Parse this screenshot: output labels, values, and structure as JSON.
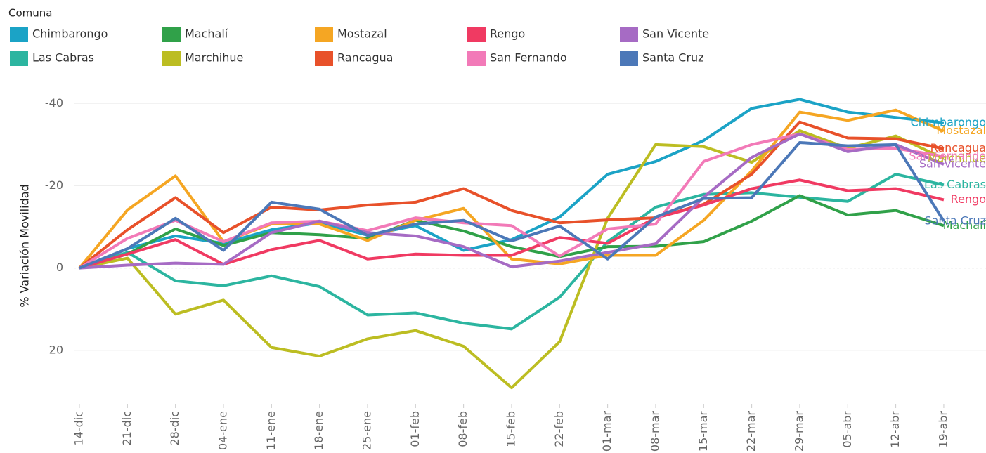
{
  "chart_data": {
    "type": "line",
    "legend_title": "Comuna",
    "ylabel": "% Variación Movilidad",
    "categories": [
      "14-dic",
      "21-dic",
      "28-dic",
      "04-ene",
      "11-ene",
      "18-ene",
      "25-ene",
      "01-feb",
      "08-feb",
      "15-feb",
      "22-feb",
      "01-mar",
      "08-mar",
      "15-mar",
      "22-mar",
      "29-mar",
      "05-abr",
      "12-abr",
      "19-abr"
    ],
    "ylim": [
      33,
      -45
    ],
    "yticks": [
      -40,
      -20,
      0,
      20
    ],
    "grid": true,
    "zero_line": true,
    "series": [
      {
        "name": "Chimbarongo",
        "color": "#1ba3c6",
        "values": [
          0,
          -4.7,
          -7.8,
          -6,
          -9.3,
          -11,
          -8,
          -10.3,
          -4.3,
          -6.9,
          -12.4,
          -22.8,
          -25.9,
          -31,
          -38.8,
          -41,
          -37.9,
          -36.6,
          -35.3
        ]
      },
      {
        "name": "Las Cabras",
        "color": "#2cb5a0",
        "values": [
          0,
          -3.8,
          3.1,
          4.3,
          1.9,
          4.5,
          11.4,
          10.9,
          13.4,
          14.8,
          7.1,
          -6.4,
          -14.8,
          -17.9,
          -18.3,
          -17.2,
          -16.2,
          -22.8,
          -20.2
        ]
      },
      {
        "name": "Machalí",
        "color": "#30a149",
        "values": [
          0,
          -3.4,
          -9.5,
          -5.5,
          -8.6,
          -8.1,
          -7.2,
          -11.6,
          -9,
          -5.2,
          -2.8,
          -5.2,
          -5.3,
          -6.4,
          -11.4,
          -17.6,
          -12.9,
          -14,
          -10.3
        ]
      },
      {
        "name": "Marchihue",
        "color": "#bcbd22",
        "values": [
          0,
          -2.4,
          11.2,
          7.8,
          19.3,
          21.4,
          17.2,
          15.2,
          19,
          29.1,
          17.9,
          -12.1,
          -30,
          -29.5,
          -25.7,
          -33.4,
          -29.1,
          -32.1,
          -26.6
        ]
      },
      {
        "name": "Mostazal",
        "color": "#f5a623",
        "values": [
          0,
          -14.1,
          -22.4,
          -6.4,
          -10.7,
          -10.7,
          -6.7,
          -11.6,
          -14.5,
          -2.2,
          -1,
          -3.1,
          -3.1,
          -11.6,
          -23.6,
          -37.9,
          -35.9,
          -38.4,
          -33.3
        ]
      },
      {
        "name": "Rancagua",
        "color": "#e8512a",
        "values": [
          0,
          -9.3,
          -17.1,
          -8.6,
          -14.8,
          -14.1,
          -15.3,
          -16,
          -19.3,
          -14,
          -11,
          -11.7,
          -12.2,
          -15.5,
          -22.8,
          -35.5,
          -31.6,
          -31.4,
          -29
        ]
      },
      {
        "name": "Rengo",
        "color": "#f03a62",
        "values": [
          0,
          -3.4,
          -6.9,
          -0.9,
          -4.5,
          -6.7,
          -2.2,
          -3.4,
          -3.1,
          -3.1,
          -7.4,
          -6,
          -12.2,
          -15.3,
          -19.3,
          -21.4,
          -18.8,
          -19.3,
          -16.6
        ]
      },
      {
        "name": "San Fernando",
        "color": "#f27ab8",
        "values": [
          0,
          -7.2,
          -11.6,
          -6.4,
          -11,
          -11.4,
          -9.1,
          -12.2,
          -11,
          -10.3,
          -2.9,
          -9.5,
          -10.7,
          -25.9,
          -30,
          -32.6,
          -28.8,
          -29.1,
          -27.1
        ]
      },
      {
        "name": "San Vicente",
        "color": "#a66bc4",
        "values": [
          0,
          -0.7,
          -1.2,
          -0.9,
          -8.6,
          -11.4,
          -8.6,
          -7.8,
          -5.2,
          -0.3,
          -1.7,
          -3.8,
          -5.9,
          -17.2,
          -26.9,
          -32.6,
          -28.3,
          -30,
          -25.2
        ]
      },
      {
        "name": "Santa Cruz",
        "color": "#4c78b8",
        "values": [
          0,
          -4.7,
          -12.1,
          -4.3,
          -16,
          -14.3,
          -7.9,
          -10.7,
          -11.6,
          -6.6,
          -10.2,
          -2.2,
          -12.4,
          -16.9,
          -17.1,
          -30.5,
          -29.7,
          -30,
          -11.4
        ]
      }
    ]
  }
}
